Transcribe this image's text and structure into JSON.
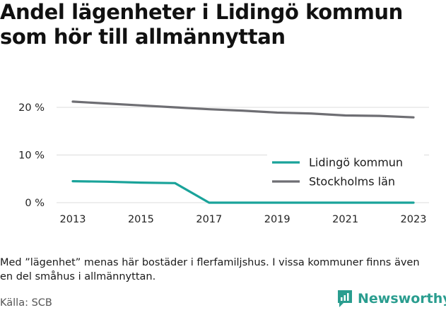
{
  "chart_data": {
    "type": "line",
    "title": "Andel lägenheter i Lidingö kommun som hör till allmännyttan",
    "x": [
      2013,
      2014,
      2015,
      2016,
      2017,
      2018,
      2019,
      2020,
      2021,
      2022,
      2023
    ],
    "x_ticks": [
      "2013",
      "2015",
      "2017",
      "2019",
      "2021",
      "2023"
    ],
    "y_ticks": [
      {
        "value": 0,
        "label": "0 %"
      },
      {
        "value": 10,
        "label": "10 %"
      },
      {
        "value": 20,
        "label": "20 %"
      }
    ],
    "ylim": [
      0,
      22
    ],
    "grid": "horizontal",
    "legend_position": "right",
    "series": [
      {
        "name": "Lidingö kommun",
        "color": "#1aa39a",
        "values": [
          4.5,
          4.4,
          4.2,
          4.1,
          0,
          0,
          0,
          0,
          0,
          0,
          0
        ]
      },
      {
        "name": "Stockholms län",
        "color": "#6e6e73",
        "values": [
          21.2,
          20.8,
          20.4,
          20.0,
          19.6,
          19.3,
          18.9,
          18.7,
          18.3,
          18.2,
          17.9
        ]
      }
    ]
  },
  "footer": {
    "note": "Med ”lägenhet” menas här bostäder i flerfamiljshus. I vissa kommuner finns även en del småhus i allmännyttan.",
    "source": "Källa: SCB",
    "brand": "Newsworthy"
  },
  "colors": {
    "brand": "#2a9d8f",
    "grid": "#dddddd"
  }
}
